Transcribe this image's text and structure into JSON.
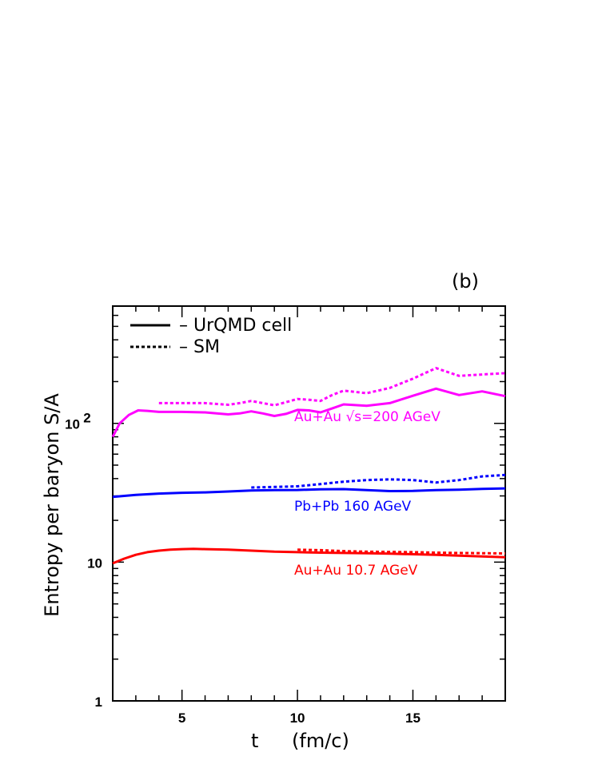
{
  "chart_data": {
    "type": "line",
    "panel_label": "(b)",
    "xlabel_var": "t",
    "xlabel_unit": "(fm/c)",
    "ylabel": "Entropy per baryon  S/A",
    "xlim": [
      2,
      19
    ],
    "ylim": [
      1,
      700
    ],
    "yscale": "log",
    "x_ticks": [
      5,
      10,
      15
    ],
    "y_ticks": [
      {
        "value": 1,
        "base": "1",
        "exp": ""
      },
      {
        "value": 10,
        "base": "10",
        "exp": ""
      },
      {
        "value": 100,
        "base": "10",
        "exp": "2"
      }
    ],
    "grid": false,
    "legend": {
      "placement": "top-left",
      "entries": [
        {
          "style": "solid",
          "label": "– UrQMD cell"
        },
        {
          "style": "dotted",
          "label": "– SM"
        }
      ]
    },
    "series": [
      {
        "label": "Au+Au  √s=200 AGeV",
        "color": "#ff00ff",
        "lines": [
          {
            "style": "solid",
            "x": [
              2.0,
              2.3,
              2.7,
              3.1,
              3.5,
              4.0,
              5.0,
              6.0,
              7.0,
              7.5,
              8.0,
              8.5,
              9.0,
              9.5,
              10.0,
              10.5,
              11.0,
              11.5,
              12.0,
              13.0,
              14.0,
              15.0,
              16.0,
              17.0,
              18.0,
              19.0
            ],
            "y": [
              80,
              100,
              115,
              124,
              123,
              121,
              121,
              120,
              116,
              118,
              122,
              118,
              113,
              117,
              125,
              124,
              120,
              128,
              137,
              134,
              140,
              158,
              178,
              160,
              170,
              157
            ]
          },
          {
            "style": "dotted",
            "x": [
              4.0,
              5.0,
              6.0,
              7.0,
              7.5,
              8.0,
              8.5,
              9.0,
              9.5,
              10.0,
              10.5,
              11.0,
              11.5,
              12.0,
              13.0,
              14.0,
              15.0,
              16.0,
              17.0,
              18.0,
              19.0
            ],
            "y": [
              140,
              140,
              140,
              136,
              140,
              145,
              140,
              135,
              142,
              150,
              148,
              145,
              160,
              172,
              165,
              180,
              210,
              250,
              220,
              225,
              230
            ]
          }
        ]
      },
      {
        "label": "Pb+Pb 160 AGeV",
        "color": "#0000ff",
        "lines": [
          {
            "style": "solid",
            "x": [
              2.0,
              3.0,
              4.0,
              5.0,
              6.0,
              7.0,
              8.0,
              9.0,
              10.0,
              11.0,
              12.0,
              13.0,
              14.0,
              15.0,
              16.0,
              17.0,
              18.0,
              19.0
            ],
            "y": [
              29.5,
              30.5,
              31.2,
              31.6,
              31.8,
              32.3,
              32.8,
              33.0,
              33.1,
              33.5,
              33.6,
              33.0,
              32.5,
              32.6,
              33.0,
              33.3,
              33.7,
              34.0
            ]
          },
          {
            "style": "dotted",
            "x": [
              8.0,
              9.0,
              10.0,
              11.0,
              12.0,
              13.0,
              14.0,
              15.0,
              16.0,
              17.0,
              18.0,
              19.0
            ],
            "y": [
              34.5,
              34.8,
              35.2,
              36.5,
              38.0,
              39.0,
              39.5,
              39.0,
              37.5,
              39.0,
              41.5,
              42.5
            ]
          }
        ]
      },
      {
        "label": "Au+Au 10.7 AGeV",
        "color": "#ff0000",
        "lines": [
          {
            "style": "solid",
            "x": [
              2.0,
              2.5,
              3.0,
              3.5,
              4.0,
              4.5,
              5.0,
              5.5,
              6.0,
              7.0,
              8.0,
              9.0,
              10.0,
              11.0,
              12.0,
              13.0,
              14.0,
              15.0,
              16.0,
              17.0,
              18.0,
              19.0
            ],
            "y": [
              9.8,
              10.6,
              11.3,
              11.8,
              12.1,
              12.3,
              12.4,
              12.45,
              12.4,
              12.3,
              12.1,
              11.9,
              11.8,
              11.7,
              11.65,
              11.6,
              11.5,
              11.4,
              11.3,
              11.15,
              11.0,
              10.85
            ]
          },
          {
            "style": "dotted",
            "x": [
              10.0,
              11.0,
              12.0,
              13.0,
              14.0,
              15.0,
              16.0,
              17.0,
              18.0,
              19.0
            ],
            "y": [
              12.3,
              12.2,
              12.0,
              11.9,
              11.85,
              11.8,
              11.7,
              11.65,
              11.6,
              11.55
            ]
          }
        ]
      }
    ]
  }
}
